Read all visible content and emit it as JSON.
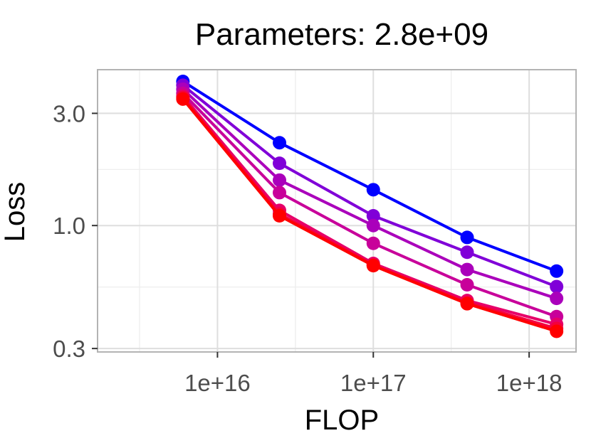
{
  "chart_data": {
    "type": "line",
    "title": "Parameters: 2.8e+09",
    "xlabel": "FLOP",
    "ylabel": "Loss",
    "x_scale": "log10",
    "y_scale": "log10",
    "xlim": [
      1700000000000000.0,
      2e+18
    ],
    "ylim": [
      0.29,
      4.6
    ],
    "x_ticks": [
      {
        "value": 1e+16,
        "label": "1e+16"
      },
      {
        "value": 1e+17,
        "label": "1e+17"
      },
      {
        "value": 1e+18,
        "label": "1e+18"
      }
    ],
    "y_ticks": [
      {
        "value": 3.0,
        "label": "3.0"
      },
      {
        "value": 1.0,
        "label": "1.0"
      },
      {
        "value": 0.3,
        "label": "0.3"
      }
    ],
    "grid": true,
    "legend": "none",
    "x": [
      6000000000000000.0,
      2.5e+16,
      1e+17,
      4e+17,
      1.5e+18
    ],
    "series": [
      {
        "color": "#0000ff",
        "values": [
          4.1,
          2.25,
          1.42,
          0.89,
          0.64
        ]
      },
      {
        "color": "#8000d8",
        "values": [
          3.95,
          1.84,
          1.1,
          0.77,
          0.55
        ]
      },
      {
        "color": "#aa00bb",
        "values": [
          3.8,
          1.56,
          1.0,
          0.65,
          0.49
        ]
      },
      {
        "color": "#c8009a",
        "values": [
          3.65,
          1.38,
          0.84,
          0.56,
          0.41
        ]
      },
      {
        "color": "#e6006a",
        "values": [
          3.55,
          1.16,
          0.69,
          0.48,
          0.38
        ]
      },
      {
        "color": "#f5003c",
        "values": [
          3.5,
          1.12,
          0.68,
          0.47,
          0.365
        ]
      },
      {
        "color": "#ff0000",
        "values": [
          3.45,
          1.1,
          0.675,
          0.465,
          0.355
        ]
      }
    ]
  }
}
